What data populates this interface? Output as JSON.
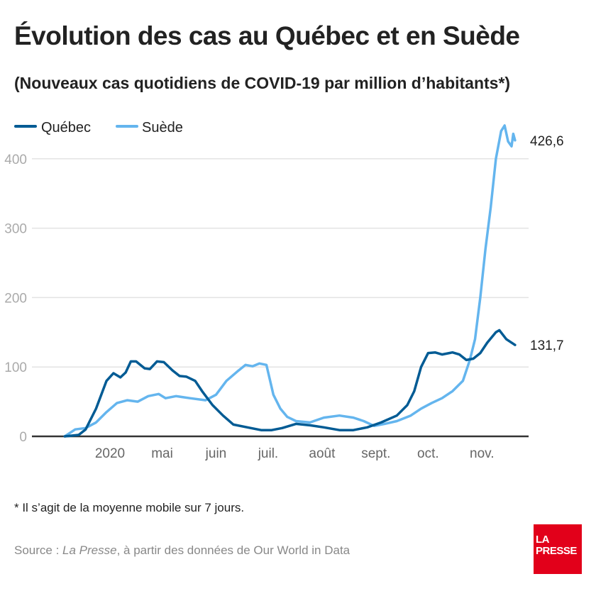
{
  "header": {
    "title": "Évolution des cas au Québec et en Suède",
    "subtitle": "(Nouveaux cas quotidiens de COVID-19 par million d’habitants*)"
  },
  "footer": {
    "footnote": "* Il s’agit de la moyenne mobile sur 7 jours.",
    "source_prefix": "Source : ",
    "source_italic": "La Presse",
    "source_suffix": ", à partir des données de Our World in Data",
    "logo_text": "LA PRESSE"
  },
  "chart_data": {
    "type": "line",
    "title": "Évolution des cas au Québec et en Suède",
    "subtitle": "(Nouveaux cas quotidiens de COVID-19 par million d’habitants*)",
    "ylim": [
      0,
      450
    ],
    "yticks": [
      0,
      100,
      200,
      300,
      400
    ],
    "ytick_labels": [
      "0",
      "100",
      "200",
      "300",
      "400"
    ],
    "xticks": [
      "2020-04-01",
      "2020-05-01",
      "2020-06-01",
      "2020-07-01",
      "2020-08-01",
      "2020-09-01",
      "2020-10-01",
      "2020-11-01"
    ],
    "xtick_labels": [
      "2020",
      "mai",
      "juin",
      "juil.",
      "août",
      "sept.",
      "oct.",
      "nov."
    ],
    "grid": true,
    "legend": "top-left",
    "series": [
      {
        "name": "Québec",
        "color": "#005b94",
        "end_label": "131,7",
        "points": [
          [
            "2020-03-06",
            0
          ],
          [
            "2020-03-14",
            2
          ],
          [
            "2020-03-18",
            10
          ],
          [
            "2020-03-24",
            40
          ],
          [
            "2020-03-30",
            80
          ],
          [
            "2020-04-03",
            91
          ],
          [
            "2020-04-07",
            85
          ],
          [
            "2020-04-10",
            92
          ],
          [
            "2020-04-13",
            108
          ],
          [
            "2020-04-16",
            108
          ],
          [
            "2020-04-21",
            98
          ],
          [
            "2020-04-24",
            97
          ],
          [
            "2020-04-28",
            108
          ],
          [
            "2020-05-02",
            107
          ],
          [
            "2020-05-07",
            95
          ],
          [
            "2020-05-11",
            87
          ],
          [
            "2020-05-15",
            86
          ],
          [
            "2020-05-20",
            80
          ],
          [
            "2020-05-24",
            65
          ],
          [
            "2020-05-30",
            45
          ],
          [
            "2020-06-05",
            30
          ],
          [
            "2020-06-11",
            17
          ],
          [
            "2020-06-19",
            13
          ],
          [
            "2020-06-27",
            9
          ],
          [
            "2020-07-03",
            9
          ],
          [
            "2020-07-09",
            12
          ],
          [
            "2020-07-17",
            18
          ],
          [
            "2020-07-25",
            16
          ],
          [
            "2020-08-02",
            13
          ],
          [
            "2020-08-11",
            9
          ],
          [
            "2020-08-19",
            9
          ],
          [
            "2020-08-27",
            13
          ],
          [
            "2020-09-04",
            20
          ],
          [
            "2020-09-13",
            30
          ],
          [
            "2020-09-19",
            45
          ],
          [
            "2020-09-23",
            65
          ],
          [
            "2020-09-27",
            100
          ],
          [
            "2020-10-01",
            120
          ],
          [
            "2020-10-05",
            121
          ],
          [
            "2020-10-09",
            118
          ],
          [
            "2020-10-15",
            121
          ],
          [
            "2020-10-19",
            118
          ],
          [
            "2020-10-23",
            110
          ],
          [
            "2020-10-27",
            112
          ],
          [
            "2020-10-31",
            120
          ],
          [
            "2020-11-04",
            135
          ],
          [
            "2020-11-09",
            150
          ],
          [
            "2020-11-11",
            153
          ],
          [
            "2020-11-15",
            140
          ],
          [
            "2020-11-20",
            131.7
          ]
        ]
      },
      {
        "name": "Suède",
        "color": "#64b5ee",
        "end_label": "426,6",
        "points": [
          [
            "2020-03-06",
            0
          ],
          [
            "2020-03-12",
            10
          ],
          [
            "2020-03-18",
            12
          ],
          [
            "2020-03-24",
            20
          ],
          [
            "2020-03-30",
            35
          ],
          [
            "2020-04-05",
            48
          ],
          [
            "2020-04-11",
            52
          ],
          [
            "2020-04-17",
            50
          ],
          [
            "2020-04-23",
            58
          ],
          [
            "2020-04-29",
            61
          ],
          [
            "2020-05-03",
            55
          ],
          [
            "2020-05-09",
            58
          ],
          [
            "2020-05-17",
            55
          ],
          [
            "2020-05-26",
            52
          ],
          [
            "2020-06-01",
            60
          ],
          [
            "2020-06-07",
            80
          ],
          [
            "2020-06-14",
            95
          ],
          [
            "2020-06-18",
            103
          ],
          [
            "2020-06-22",
            101
          ],
          [
            "2020-06-26",
            105
          ],
          [
            "2020-06-30",
            103
          ],
          [
            "2020-07-04",
            60
          ],
          [
            "2020-07-08",
            40
          ],
          [
            "2020-07-12",
            28
          ],
          [
            "2020-07-17",
            22
          ],
          [
            "2020-07-25",
            20
          ],
          [
            "2020-08-02",
            27
          ],
          [
            "2020-08-11",
            30
          ],
          [
            "2020-08-19",
            27
          ],
          [
            "2020-08-25",
            22
          ],
          [
            "2020-08-31",
            15
          ],
          [
            "2020-09-06",
            18
          ],
          [
            "2020-09-13",
            22
          ],
          [
            "2020-09-21",
            30
          ],
          [
            "2020-09-27",
            40
          ],
          [
            "2020-10-03",
            48
          ],
          [
            "2020-10-09",
            55
          ],
          [
            "2020-10-15",
            65
          ],
          [
            "2020-10-21",
            80
          ],
          [
            "2020-10-25",
            110
          ],
          [
            "2020-10-28",
            140
          ],
          [
            "2020-10-31",
            200
          ],
          [
            "2020-11-03",
            270
          ],
          [
            "2020-11-06",
            330
          ],
          [
            "2020-11-09",
            400
          ],
          [
            "2020-11-12",
            440
          ],
          [
            "2020-11-14",
            448
          ],
          [
            "2020-11-16",
            425
          ],
          [
            "2020-11-18",
            418
          ],
          [
            "2020-11-19",
            436
          ],
          [
            "2020-11-20",
            426.6
          ]
        ]
      }
    ]
  }
}
